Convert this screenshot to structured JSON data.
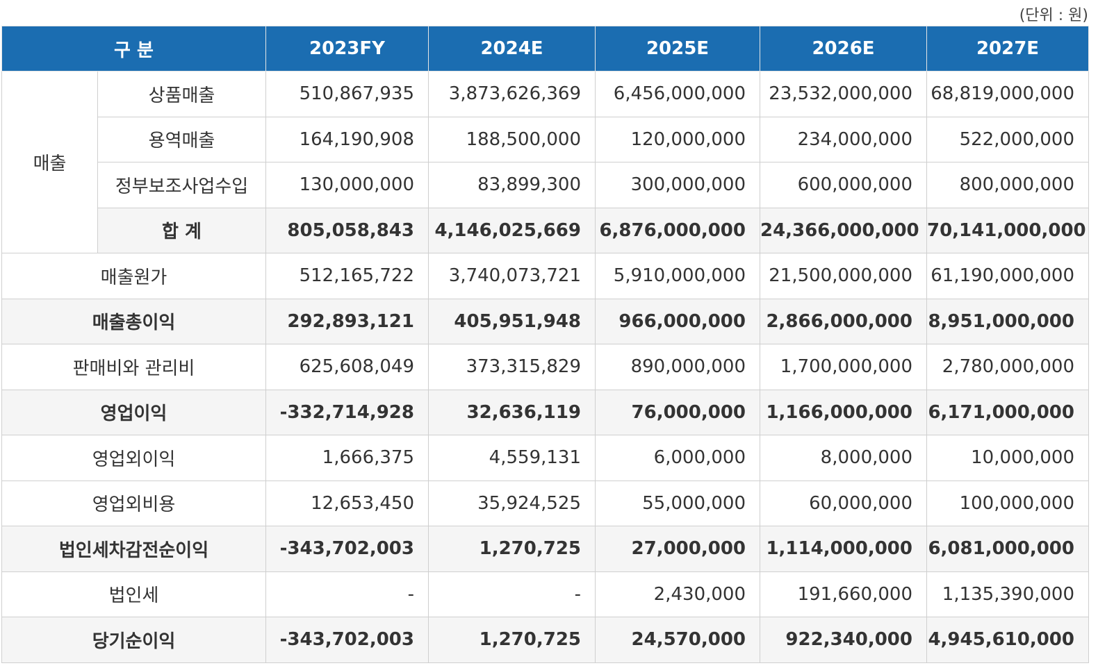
{
  "unit": "(단위 : 원)",
  "table": {
    "header": [
      "구 분",
      "2023FY",
      "2024E",
      "2025E",
      "2026E",
      "2027E"
    ],
    "group": {
      "label": "매출",
      "rows": [
        {
          "label": "상품매출",
          "values": [
            "510,867,935",
            "3,873,626,369",
            "6,456,000,000",
            "23,532,000,000",
            "68,819,000,000"
          ]
        },
        {
          "label": "용역매출",
          "values": [
            "164,190,908",
            "188,500,000",
            "120,000,000",
            "234,000,000",
            "522,000,000"
          ]
        },
        {
          "label": "정부보조사업수입",
          "values": [
            "130,000,000",
            "83,899,300",
            "300,000,000",
            "600,000,000",
            "800,000,000"
          ]
        },
        {
          "label": "합 계",
          "values": [
            "805,058,843",
            "4,146,025,669",
            "6,876,000,000",
            "24,366,000,000",
            "70,141,000,000"
          ]
        }
      ]
    },
    "rows": [
      {
        "label": "매출원가",
        "values": [
          "512,165,722",
          "3,740,073,721",
          "5,910,000,000",
          "21,500,000,000",
          "61,190,000,000"
        ]
      },
      {
        "label": "매출총이익",
        "values": [
          "292,893,121",
          "405,951,948",
          "966,000,000",
          "2,866,000,000",
          "8,951,000,000"
        ]
      },
      {
        "label": "판매비와 관리비",
        "values": [
          "625,608,049",
          "373,315,829",
          "890,000,000",
          "1,700,000,000",
          "2,780,000,000"
        ]
      },
      {
        "label": "영업이익",
        "values": [
          "-332,714,928",
          "32,636,119",
          "76,000,000",
          "1,166,000,000",
          "6,171,000,000"
        ]
      },
      {
        "label": "영업외이익",
        "values": [
          "1,666,375",
          "4,559,131",
          "6,000,000",
          "8,000,000",
          "10,000,000"
        ]
      },
      {
        "label": "영업외비용",
        "values": [
          "12,653,450",
          "35,924,525",
          "55,000,000",
          "60,000,000",
          "100,000,000"
        ]
      },
      {
        "label": "법인세차감전순이익",
        "values": [
          "-343,702,003",
          "1,270,725",
          "27,000,000",
          "1,114,000,000",
          "6,081,000,000"
        ]
      },
      {
        "label": "법인세",
        "values": [
          "-",
          "-",
          "2,430,000",
          "191,660,000",
          "1,135,390,000"
        ]
      },
      {
        "label": "당기순이익",
        "values": [
          "-343,702,003",
          "1,270,725",
          "24,570,000",
          "922,340,000",
          "4,945,610,000"
        ]
      }
    ]
  }
}
